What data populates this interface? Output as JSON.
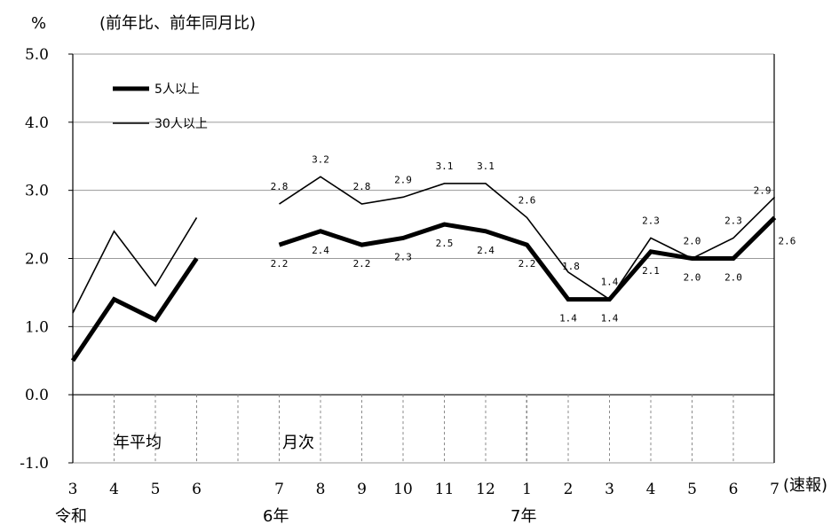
{
  "chart_data": {
    "type": "line",
    "title": "",
    "ylabel": "%",
    "subtitle": "(前年比、前年同月比)",
    "ylim": [
      -1.0,
      5.0
    ],
    "yticks": [
      "5.0",
      "4.0",
      "3.0",
      "2.0",
      "1.0",
      "0.0",
      "-1.0"
    ],
    "grid": true,
    "legend_position": "top-left",
    "annual_label": "年平均",
    "monthly_label": "月次",
    "annual": {
      "categories": [
        "3",
        "4",
        "5",
        "6"
      ],
      "era_label": "令和",
      "series": [
        {
          "name": "5人以上",
          "values": [
            0.5,
            1.4,
            1.1,
            2.0
          ]
        },
        {
          "name": "30人以上",
          "values": [
            1.2,
            2.4,
            1.6,
            2.6
          ]
        }
      ]
    },
    "monthly": {
      "categories": [
        "7",
        "8",
        "9",
        "10",
        "11",
        "12",
        "1",
        "2",
        "3",
        "4",
        "5",
        "6",
        "7"
      ],
      "year_labels": [
        "6年",
        "7年"
      ],
      "last_note": "(速報)",
      "series": [
        {
          "name": "5人以上",
          "values": [
            2.2,
            2.4,
            2.2,
            2.3,
            2.5,
            2.4,
            2.2,
            1.4,
            1.4,
            2.1,
            2.0,
            2.0,
            2.6
          ],
          "labels": [
            "2.2",
            "2.4",
            "2.2",
            "2.3",
            "2.5",
            "2.4",
            "2.2",
            "1.4",
            "1.4",
            "2.1",
            "2.0",
            "2.0",
            "2.6"
          ]
        },
        {
          "name": "30人以上",
          "values": [
            2.8,
            3.2,
            2.8,
            2.9,
            3.1,
            3.1,
            2.6,
            1.8,
            1.4,
            2.3,
            2.0,
            2.3,
            2.9
          ],
          "labels": [
            "2.8",
            "3.2",
            "2.8",
            "2.9",
            "3.1",
            "3.1",
            "2.6",
            "1.8",
            "1.4",
            "2.3",
            "2.0",
            "2.3",
            "2.9"
          ]
        }
      ]
    },
    "colors": {
      "line": "#000000",
      "grid": "#9a9a9a",
      "divider": "#888888"
    }
  }
}
